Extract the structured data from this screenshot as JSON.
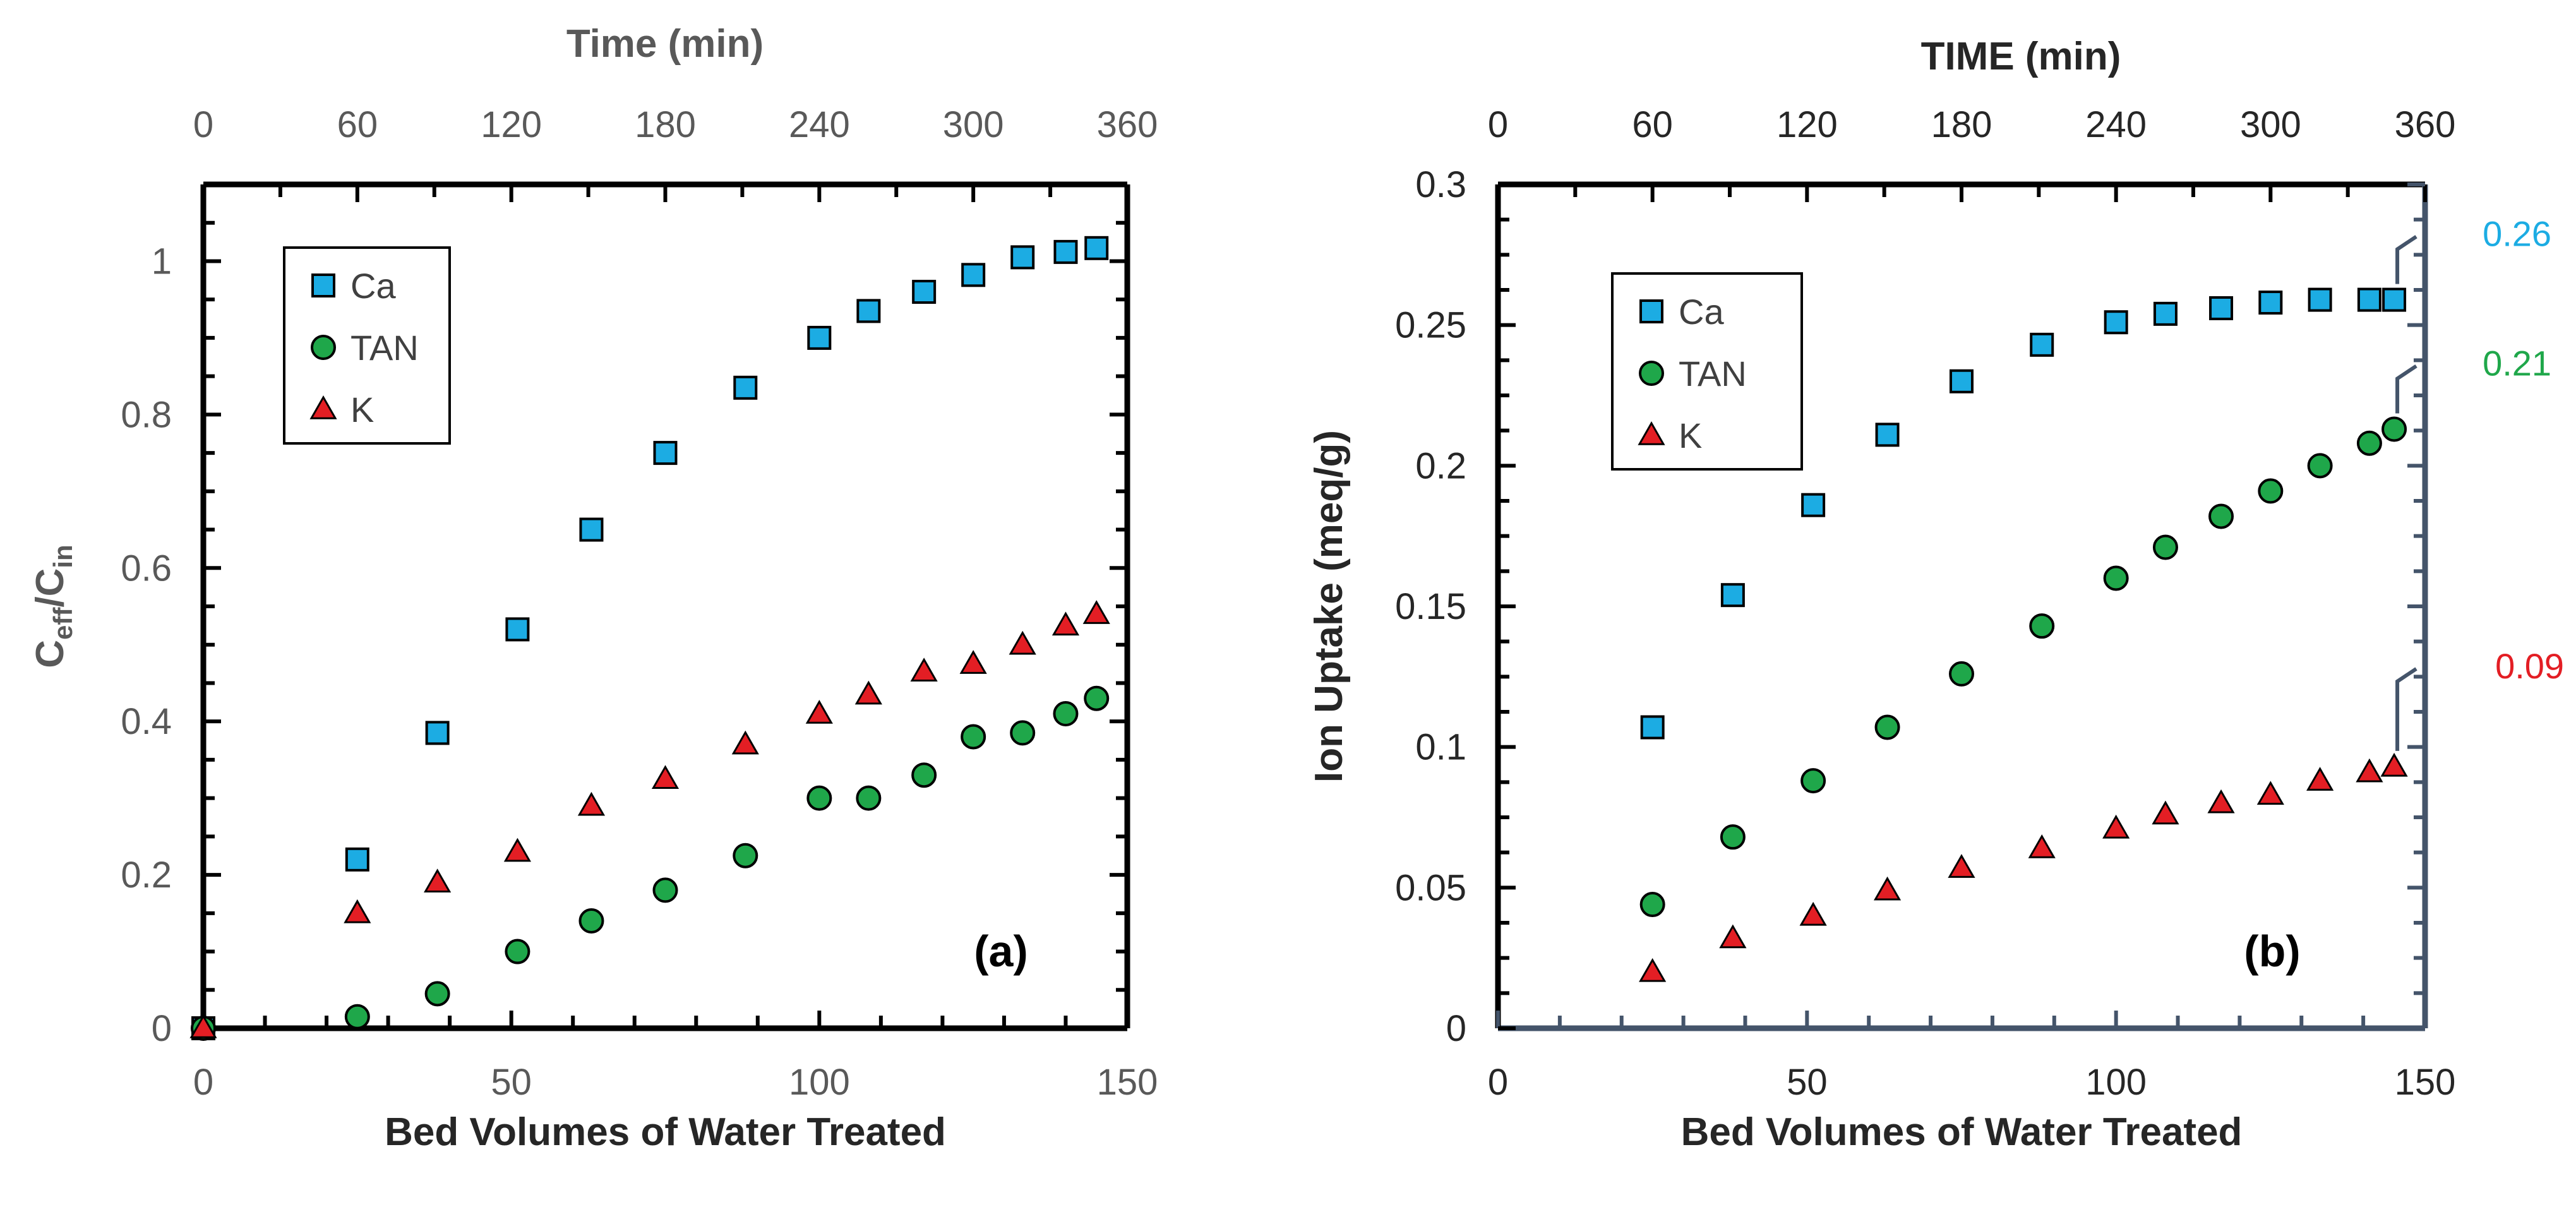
{
  "chart_data": [
    {
      "id": "a",
      "type": "scatter",
      "panel_label": "(a)",
      "xlabel": "Bed Volumes of Water Treated",
      "ylabel": {
        "main": "C",
        "sub1": "eff",
        "mid": "/C",
        "sub2": "in"
      },
      "top_xlabel": "Time (min)",
      "xlim": [
        0,
        150
      ],
      "ylim": [
        0,
        1.1
      ],
      "top_xlim": [
        0,
        360
      ],
      "x_ticks": [
        "0",
        "50",
        "100",
        "150"
      ],
      "y_ticks": [
        "0",
        "0.2",
        "0.4",
        "0.6",
        "0.8",
        "1"
      ],
      "top_ticks": [
        "0",
        "60",
        "120",
        "180",
        "240",
        "300",
        "360"
      ],
      "legend_position": "top-left",
      "series": [
        {
          "name": "Ca",
          "marker": "square",
          "color": "#1CACE3",
          "x": [
            0,
            25,
            38,
            51,
            63,
            75,
            88,
            100,
            108,
            117,
            125,
            133,
            140,
            145
          ],
          "y": [
            0,
            0.22,
            0.385,
            0.52,
            0.65,
            0.75,
            0.835,
            0.9,
            0.935,
            0.96,
            0.982,
            1.005,
            1.012,
            1.017
          ]
        },
        {
          "name": "TAN",
          "marker": "circle",
          "color": "#1FA74A",
          "x": [
            0,
            25,
            38,
            51,
            63,
            75,
            88,
            100,
            108,
            117,
            125,
            133,
            140,
            145
          ],
          "y": [
            0,
            0.015,
            0.045,
            0.1,
            0.14,
            0.18,
            0.225,
            0.3,
            0.3,
            0.33,
            0.38,
            0.385,
            0.41,
            0.43
          ]
        },
        {
          "name": "K",
          "marker": "triangle",
          "color": "#E31E24",
          "x": [
            0,
            25,
            38,
            51,
            63,
            75,
            88,
            100,
            108,
            117,
            125,
            133,
            140,
            145
          ],
          "y": [
            0,
            0.15,
            0.19,
            0.23,
            0.29,
            0.325,
            0.37,
            0.41,
            0.435,
            0.465,
            0.475,
            0.5,
            0.525,
            0.54
          ]
        }
      ]
    },
    {
      "id": "b",
      "type": "scatter",
      "panel_label": "(b)",
      "xlabel": "Bed Volumes of Water Treated",
      "ylabel": "Ion Uptake (meq/g)",
      "top_xlabel": "TIME (min)",
      "xlim": [
        0,
        150
      ],
      "ylim": [
        0,
        0.3
      ],
      "top_xlim": [
        0,
        360
      ],
      "x_ticks": [
        "0",
        "50",
        "100",
        "150"
      ],
      "y_ticks": [
        "0",
        "0.05",
        "0.1",
        "0.15",
        "0.2",
        "0.25",
        "0.3"
      ],
      "top_ticks": [
        "0",
        "60",
        "120",
        "180",
        "240",
        "300",
        "360"
      ],
      "legend_position": "top-left",
      "series": [
        {
          "name": "Ca",
          "marker": "square",
          "color": "#1CACE3",
          "x": [
            25,
            38,
            51,
            63,
            75,
            88,
            100,
            108,
            117,
            125,
            133,
            141,
            145
          ],
          "y": [
            0.107,
            0.154,
            0.186,
            0.211,
            0.23,
            0.243,
            0.251,
            0.254,
            0.256,
            0.258,
            0.259,
            0.259,
            0.259
          ]
        },
        {
          "name": "TAN",
          "marker": "circle",
          "color": "#1FA74A",
          "x": [
            25,
            38,
            51,
            63,
            75,
            88,
            100,
            108,
            117,
            125,
            133,
            141,
            145
          ],
          "y": [
            0.044,
            0.068,
            0.088,
            0.107,
            0.126,
            0.143,
            0.16,
            0.171,
            0.182,
            0.191,
            0.2,
            0.208,
            0.213
          ]
        },
        {
          "name": "K",
          "marker": "triangle",
          "color": "#E31E24",
          "x": [
            25,
            38,
            51,
            63,
            75,
            88,
            100,
            108,
            117,
            125,
            133,
            141,
            145
          ],
          "y": [
            0.02,
            0.032,
            0.04,
            0.049,
            0.057,
            0.064,
            0.071,
            0.076,
            0.08,
            0.083,
            0.088,
            0.091,
            0.093
          ]
        }
      ],
      "annotations": [
        {
          "text": "0.26",
          "series": "Ca",
          "color": "#1CACE3"
        },
        {
          "text": "0.21",
          "series": "TAN",
          "color": "#1FA74A"
        },
        {
          "text": "0.09",
          "series": "K",
          "color": "#E31E24"
        }
      ]
    }
  ]
}
